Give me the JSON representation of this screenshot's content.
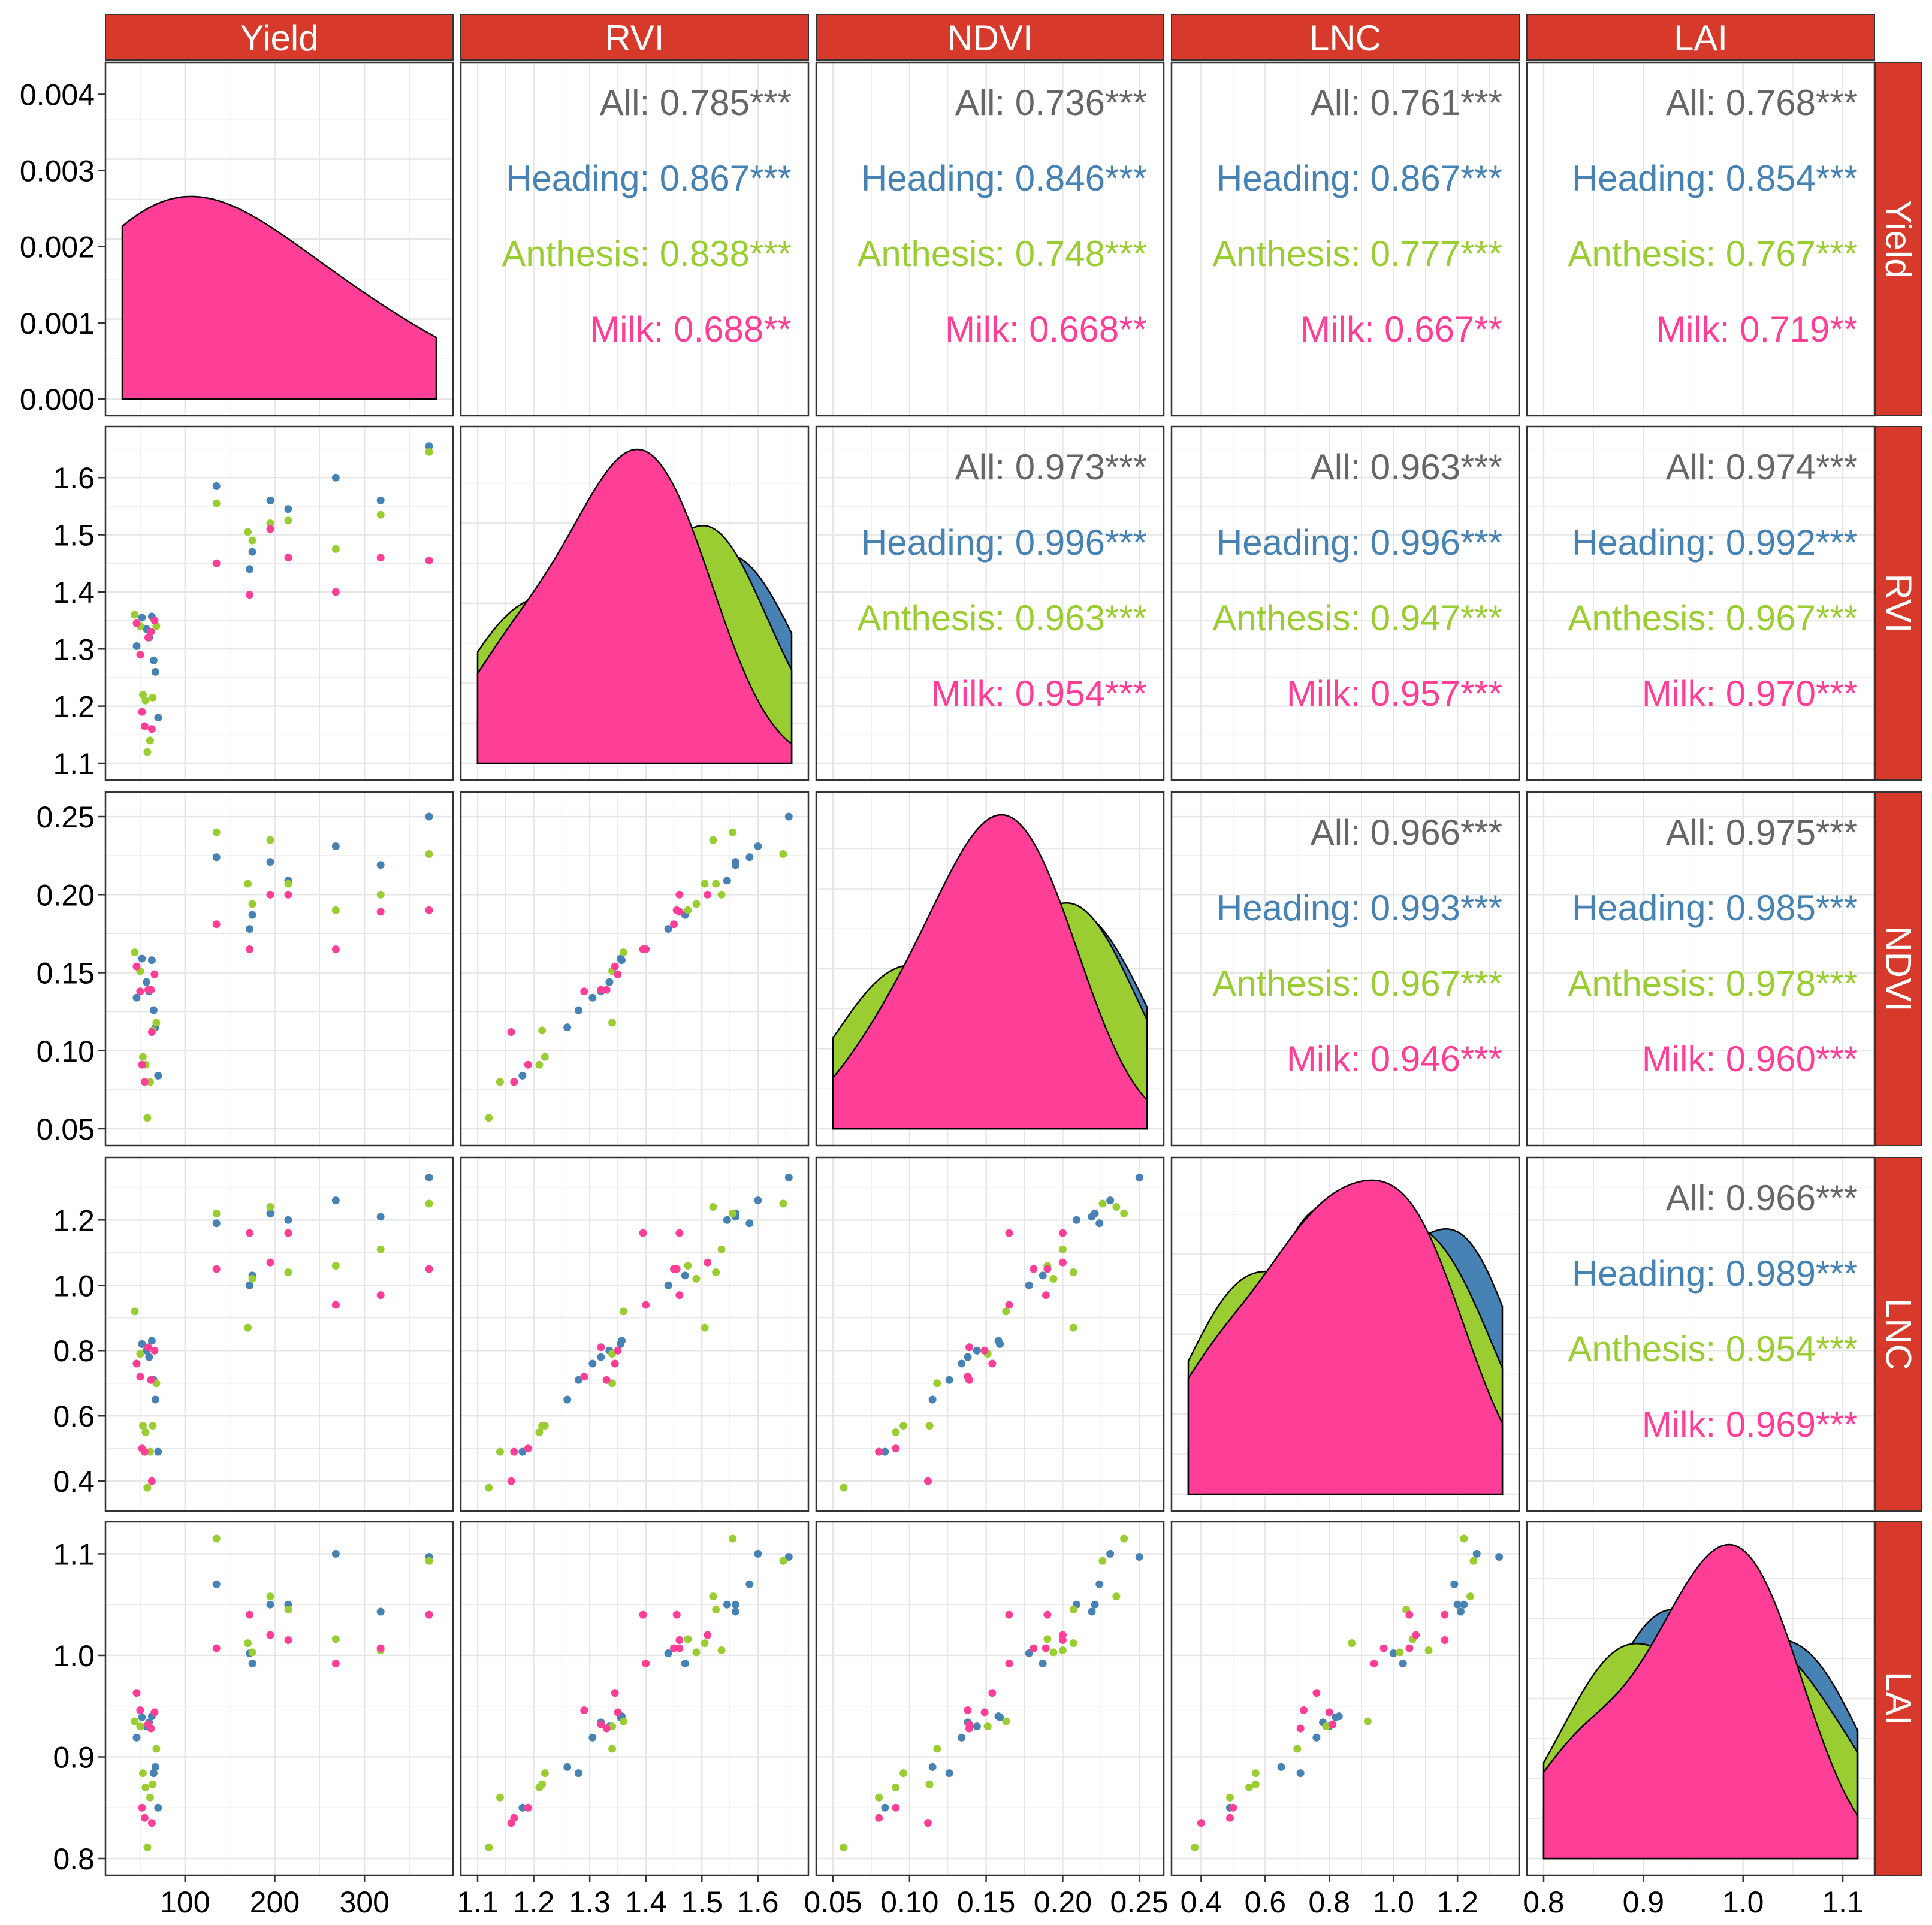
{
  "chart_data": {
    "type": "scatter-matrix",
    "variables": [
      "Yield",
      "RVI",
      "NDVI",
      "LNC",
      "LAI"
    ],
    "groups": [
      {
        "name": "Heading",
        "color": "#4682B4"
      },
      {
        "name": "Anthesis",
        "color": "#9ACD32"
      },
      {
        "name": "Milk",
        "color": "#FF3F97"
      }
    ],
    "strip_fill": "#D73A2A",
    "density_outline": "#000000",
    "axis_ranges": {
      "Yield": [
        30,
        380
      ],
      "RVI": [
        1.1,
        1.66
      ],
      "NDVI": [
        0.05,
        0.255
      ],
      "LNC": [
        0.36,
        1.34
      ],
      "LAI": [
        0.8,
        1.115
      ]
    },
    "y_ticks": {
      "Yield": [
        "0.000",
        "0.001",
        "0.002",
        "0.003",
        "0.004"
      ],
      "RVI": [
        "1.1",
        "1.2",
        "1.3",
        "1.4",
        "1.5",
        "1.6"
      ],
      "NDVI": [
        "0.05",
        "0.10",
        "0.15",
        "0.20",
        "0.25"
      ],
      "LNC": [
        "0.4",
        "0.6",
        "0.8",
        "1.0",
        "1.2"
      ],
      "LAI": [
        "0.8",
        "0.9",
        "1.0",
        "1.1"
      ]
    },
    "x_ticks": {
      "Yield": [
        "100",
        "200",
        "300"
      ],
      "RVI": [
        "1.1",
        "1.2",
        "1.3",
        "1.4",
        "1.5",
        "1.6"
      ],
      "NDVI": [
        "0.05",
        "0.10",
        "0.15",
        "0.20",
        "0.25"
      ],
      "LNC": [
        "0.4",
        "0.6",
        "0.8",
        "1.0",
        "1.2"
      ],
      "LAI": [
        "0.8",
        "0.9",
        "1.0",
        "1.1"
      ]
    },
    "yield_density_scale": [
      0,
      0.0042
    ],
    "correlations": [
      {
        "pair": [
          "Yield",
          "RVI"
        ],
        "All": "0.785***",
        "Heading": "0.867***",
        "Anthesis": "0.838***",
        "Milk": "0.688**"
      },
      {
        "pair": [
          "Yield",
          "NDVI"
        ],
        "All": "0.736***",
        "Heading": "0.846***",
        "Anthesis": "0.748***",
        "Milk": "0.668**"
      },
      {
        "pair": [
          "Yield",
          "LNC"
        ],
        "All": "0.761***",
        "Heading": "0.867***",
        "Anthesis": "0.777***",
        "Milk": "0.667**"
      },
      {
        "pair": [
          "Yield",
          "LAI"
        ],
        "All": "0.768***",
        "Heading": "0.854***",
        "Anthesis": "0.767***",
        "Milk": "0.719**"
      },
      {
        "pair": [
          "RVI",
          "NDVI"
        ],
        "All": "0.973***",
        "Heading": "0.996***",
        "Anthesis": "0.963***",
        "Milk": "0.954***"
      },
      {
        "pair": [
          "RVI",
          "LNC"
        ],
        "All": "0.963***",
        "Heading": "0.996***",
        "Anthesis": "0.947***",
        "Milk": "0.957***"
      },
      {
        "pair": [
          "RVI",
          "LAI"
        ],
        "All": "0.974***",
        "Heading": "0.992***",
        "Anthesis": "0.967***",
        "Milk": "0.970***"
      },
      {
        "pair": [
          "NDVI",
          "LNC"
        ],
        "All": "0.966***",
        "Heading": "0.993***",
        "Anthesis": "0.967***",
        "Milk": "0.946***"
      },
      {
        "pair": [
          "NDVI",
          "LAI"
        ],
        "All": "0.975***",
        "Heading": "0.985***",
        "Anthesis": "0.978***",
        "Milk": "0.960***"
      },
      {
        "pair": [
          "LNC",
          "LAI"
        ],
        "All": "0.966***",
        "Heading": "0.989***",
        "Anthesis": "0.954***",
        "Milk": "0.969***"
      }
    ],
    "observations": [
      {
        "group": "Heading",
        "Yield": 46,
        "RVI": 1.305,
        "NDVI": 0.134,
        "LNC": 0.76,
        "LAI": 0.919
      },
      {
        "group": "Heading",
        "Yield": 52,
        "RVI": 1.355,
        "NDVI": 0.159,
        "LNC": 0.82,
        "LAI": 0.939
      },
      {
        "group": "Heading",
        "Yield": 57,
        "RVI": 1.335,
        "NDVI": 0.144,
        "LNC": 0.8,
        "LAI": 0.93
      },
      {
        "group": "Heading",
        "Yield": 60,
        "RVI": 1.32,
        "NDVI": 0.138,
        "LNC": 0.78,
        "LAI": 0.934
      },
      {
        "group": "Heading",
        "Yield": 63,
        "RVI": 1.357,
        "NDVI": 0.158,
        "LNC": 0.83,
        "LAI": 0.94
      },
      {
        "group": "Heading",
        "Yield": 65,
        "RVI": 1.28,
        "NDVI": 0.126,
        "LNC": 0.71,
        "LAI": 0.884
      },
      {
        "group": "Heading",
        "Yield": 67,
        "RVI": 1.26,
        "NDVI": 0.115,
        "LNC": 0.65,
        "LAI": 0.89
      },
      {
        "group": "Heading",
        "Yield": 70,
        "RVI": 1.18,
        "NDVI": 0.084,
        "LNC": 0.49,
        "LAI": 0.85
      },
      {
        "group": "Heading",
        "Yield": 135,
        "RVI": 1.585,
        "NDVI": 0.224,
        "LNC": 1.19,
        "LAI": 1.07
      },
      {
        "group": "Heading",
        "Yield": 172,
        "RVI": 1.44,
        "NDVI": 0.178,
        "LNC": 1.0,
        "LAI": 1.002
      },
      {
        "group": "Heading",
        "Yield": 175,
        "RVI": 1.47,
        "NDVI": 0.187,
        "LNC": 1.03,
        "LAI": 0.992
      },
      {
        "group": "Heading",
        "Yield": 195,
        "RVI": 1.56,
        "NDVI": 0.221,
        "LNC": 1.22,
        "LAI": 1.05
      },
      {
        "group": "Heading",
        "Yield": 215,
        "RVI": 1.545,
        "NDVI": 0.209,
        "LNC": 1.2,
        "LAI": 1.05
      },
      {
        "group": "Heading",
        "Yield": 268,
        "RVI": 1.6,
        "NDVI": 0.231,
        "LNC": 1.26,
        "LAI": 1.1
      },
      {
        "group": "Heading",
        "Yield": 318,
        "RVI": 1.56,
        "NDVI": 0.219,
        "LNC": 1.21,
        "LAI": 1.043
      },
      {
        "group": "Heading",
        "Yield": 372,
        "RVI": 1.655,
        "NDVI": 0.25,
        "LNC": 1.33,
        "LAI": 1.097
      },
      {
        "group": "Anthesis",
        "Yield": 44,
        "RVI": 1.36,
        "NDVI": 0.163,
        "LNC": 0.92,
        "LAI": 0.935
      },
      {
        "group": "Anthesis",
        "Yield": 50,
        "RVI": 1.34,
        "NDVI": 0.151,
        "LNC": 0.79,
        "LAI": 0.93
      },
      {
        "group": "Anthesis",
        "Yield": 53,
        "RVI": 1.22,
        "NDVI": 0.096,
        "LNC": 0.57,
        "LAI": 0.884
      },
      {
        "group": "Anthesis",
        "Yield": 56,
        "RVI": 1.21,
        "NDVI": 0.091,
        "LNC": 0.55,
        "LAI": 0.87
      },
      {
        "group": "Anthesis",
        "Yield": 58,
        "RVI": 1.12,
        "NDVI": 0.057,
        "LNC": 0.38,
        "LAI": 0.811
      },
      {
        "group": "Anthesis",
        "Yield": 61,
        "RVI": 1.14,
        "NDVI": 0.08,
        "LNC": 0.49,
        "LAI": 0.86
      },
      {
        "group": "Anthesis",
        "Yield": 64,
        "RVI": 1.215,
        "NDVI": 0.113,
        "LNC": 0.57,
        "LAI": 0.873
      },
      {
        "group": "Anthesis",
        "Yield": 68,
        "RVI": 1.34,
        "NDVI": 0.118,
        "LNC": 0.7,
        "LAI": 0.908
      },
      {
        "group": "Anthesis",
        "Yield": 135,
        "RVI": 1.555,
        "NDVI": 0.24,
        "LNC": 1.22,
        "LAI": 1.115
      },
      {
        "group": "Anthesis",
        "Yield": 170,
        "RVI": 1.505,
        "NDVI": 0.207,
        "LNC": 0.87,
        "LAI": 1.012
      },
      {
        "group": "Anthesis",
        "Yield": 175,
        "RVI": 1.49,
        "NDVI": 0.194,
        "LNC": 1.02,
        "LAI": 1.003
      },
      {
        "group": "Anthesis",
        "Yield": 195,
        "RVI": 1.52,
        "NDVI": 0.235,
        "LNC": 1.24,
        "LAI": 1.058
      },
      {
        "group": "Anthesis",
        "Yield": 215,
        "RVI": 1.525,
        "NDVI": 0.207,
        "LNC": 1.04,
        "LAI": 1.045
      },
      {
        "group": "Anthesis",
        "Yield": 268,
        "RVI": 1.475,
        "NDVI": 0.19,
        "LNC": 1.06,
        "LAI": 1.016
      },
      {
        "group": "Anthesis",
        "Yield": 318,
        "RVI": 1.535,
        "NDVI": 0.2,
        "LNC": 1.11,
        "LAI": 1.005
      },
      {
        "group": "Anthesis",
        "Yield": 372,
        "RVI": 1.645,
        "NDVI": 0.226,
        "LNC": 1.25,
        "LAI": 1.093
      },
      {
        "group": "Milk",
        "Yield": 46,
        "RVI": 1.345,
        "NDVI": 0.154,
        "LNC": 0.76,
        "LAI": 0.963
      },
      {
        "group": "Milk",
        "Yield": 50,
        "RVI": 1.29,
        "NDVI": 0.138,
        "LNC": 0.72,
        "LAI": 0.946
      },
      {
        "group": "Milk",
        "Yield": 52,
        "RVI": 1.19,
        "NDVI": 0.091,
        "LNC": 0.5,
        "LAI": 0.85
      },
      {
        "group": "Milk",
        "Yield": 55,
        "RVI": 1.165,
        "NDVI": 0.08,
        "LNC": 0.49,
        "LAI": 0.84
      },
      {
        "group": "Milk",
        "Yield": 59,
        "RVI": 1.32,
        "NDVI": 0.139,
        "LNC": 0.81,
        "LAI": 0.932
      },
      {
        "group": "Milk",
        "Yield": 62,
        "RVI": 1.33,
        "NDVI": 0.139,
        "LNC": 0.71,
        "LAI": 0.928
      },
      {
        "group": "Milk",
        "Yield": 63,
        "RVI": 1.16,
        "NDVI": 0.112,
        "LNC": 0.4,
        "LAI": 0.835
      },
      {
        "group": "Milk",
        "Yield": 66,
        "RVI": 1.35,
        "NDVI": 0.149,
        "LNC": 0.8,
        "LAI": 0.944
      },
      {
        "group": "Milk",
        "Yield": 135,
        "RVI": 1.45,
        "NDVI": 0.181,
        "LNC": 1.05,
        "LAI": 1.007
      },
      {
        "group": "Milk",
        "Yield": 172,
        "RVI": 1.395,
        "NDVI": 0.165,
        "LNC": 1.16,
        "LAI": 1.04
      },
      {
        "group": "Milk",
        "Yield": 195,
        "RVI": 1.51,
        "NDVI": 0.2,
        "LNC": 1.07,
        "LAI": 1.02
      },
      {
        "group": "Milk",
        "Yield": 215,
        "RVI": 1.46,
        "NDVI": 0.2,
        "LNC": 1.16,
        "LAI": 1.015
      },
      {
        "group": "Milk",
        "Yield": 268,
        "RVI": 1.4,
        "NDVI": 0.165,
        "LNC": 0.94,
        "LAI": 0.992
      },
      {
        "group": "Milk",
        "Yield": 318,
        "RVI": 1.46,
        "NDVI": 0.189,
        "LNC": 0.97,
        "LAI": 1.007
      },
      {
        "group": "Milk",
        "Yield": 372,
        "RVI": 1.455,
        "NDVI": 0.19,
        "LNC": 1.05,
        "LAI": 1.04
      }
    ]
  }
}
